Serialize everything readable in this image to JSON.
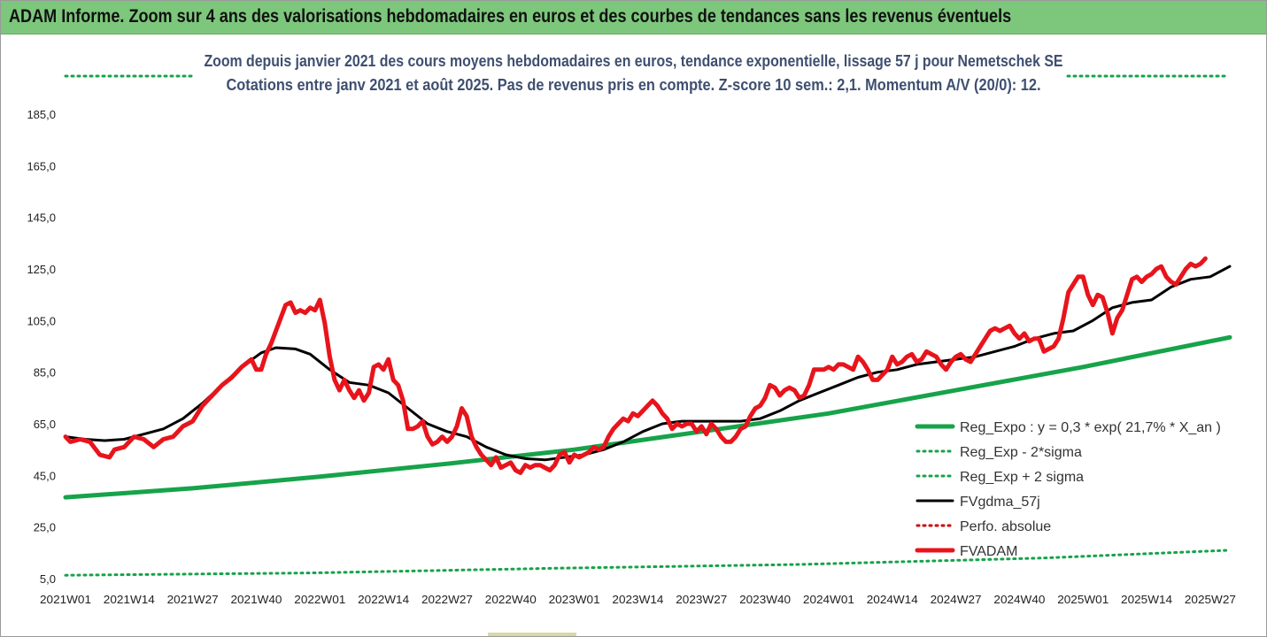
{
  "header": {
    "title": "ADAM Informe. Zoom sur 4 ans des valorisations hebdomadaires en euros et des courbes de tendances sans les revenus éventuels"
  },
  "chart_data": {
    "type": "line",
    "title": "Zoom depuis janvier 2021 des cours moyens hebdomadaires en euros, tendance exponentielle, lissage 57 j pour Nemetschek SE",
    "subtitle": "Cotations entre janv 2021 et août 2025.  Pas de revenus pris en compte. Z-score 10 sem.: 2,1. Momentum A/V (20/0): 12.",
    "ylim": [
      5,
      185
    ],
    "yticks": [
      "185,0",
      "165,0",
      "145,0",
      "125,0",
      "105,0",
      "85,0",
      "65,0",
      "45,0",
      "25,0",
      "5,0"
    ],
    "xlim": [
      0,
      238
    ],
    "xticks": [
      {
        "label": "2021W01",
        "x": 0
      },
      {
        "label": "2021W14",
        "x": 13
      },
      {
        "label": "2021W27",
        "x": 26
      },
      {
        "label": "2021W40",
        "x": 39
      },
      {
        "label": "2022W01",
        "x": 52
      },
      {
        "label": "2022W14",
        "x": 65
      },
      {
        "label": "2022W27",
        "x": 78
      },
      {
        "label": "2022W40",
        "x": 91
      },
      {
        "label": "2023W01",
        "x": 104
      },
      {
        "label": "2023W14",
        "x": 117
      },
      {
        "label": "2023W27",
        "x": 130
      },
      {
        "label": "2023W40",
        "x": 143
      },
      {
        "label": "2024W01",
        "x": 156
      },
      {
        "label": "2024W14",
        "x": 169
      },
      {
        "label": "2024W27",
        "x": 182
      },
      {
        "label": "2024W40",
        "x": 195
      },
      {
        "label": "2025W01",
        "x": 208
      },
      {
        "label": "2025W14",
        "x": 221
      },
      {
        "label": "2025W27",
        "x": 234
      }
    ],
    "legend_position": "bottom-right",
    "series": [
      {
        "name": "Reg_Expo : y = 0,3 * exp( 21,7% *  X_an )",
        "style": "solid",
        "color": "#16a34a",
        "width": 5,
        "points": [
          [
            0,
            36.5
          ],
          [
            26,
            40
          ],
          [
            52,
            44.5
          ],
          [
            78,
            49.5
          ],
          [
            104,
            55
          ],
          [
            130,
            62
          ],
          [
            156,
            69
          ],
          [
            182,
            78
          ],
          [
            208,
            87
          ],
          [
            238,
            98.5
          ]
        ]
      },
      {
        "name": "Reg_Exp - 2*sigma",
        "style": "dotted",
        "color": "#16a34a",
        "width": 3,
        "points": [
          [
            0,
            6.3
          ],
          [
            50,
            7.2
          ],
          [
            100,
            9
          ],
          [
            150,
            10.5
          ],
          [
            200,
            13
          ],
          [
            238,
            16
          ]
        ]
      },
      {
        "name": "Reg_Exp + 2 sigma",
        "style": "dotted",
        "color": "#16a34a",
        "width": 3,
        "points": [
          [
            0,
            189
          ],
          [
            238,
            189
          ]
        ]
      },
      {
        "name": "FVgdma_57j",
        "style": "solid",
        "color": "#000000",
        "width": 3,
        "points": [
          [
            0,
            60
          ],
          [
            4,
            59
          ],
          [
            8,
            58.5
          ],
          [
            12,
            59
          ],
          [
            16,
            61
          ],
          [
            20,
            63
          ],
          [
            24,
            67
          ],
          [
            28,
            73
          ],
          [
            32,
            80
          ],
          [
            36,
            87
          ],
          [
            40,
            92.5
          ],
          [
            43,
            94.5
          ],
          [
            47,
            94
          ],
          [
            50,
            92
          ],
          [
            54,
            86
          ],
          [
            58,
            81
          ],
          [
            62,
            80
          ],
          [
            66,
            77
          ],
          [
            70,
            71
          ],
          [
            74,
            65
          ],
          [
            78,
            62
          ],
          [
            82,
            60
          ],
          [
            86,
            56
          ],
          [
            90,
            53
          ],
          [
            94,
            51.5
          ],
          [
            98,
            51
          ],
          [
            102,
            52
          ],
          [
            106,
            53
          ],
          [
            110,
            55
          ],
          [
            114,
            58
          ],
          [
            118,
            62
          ],
          [
            122,
            65
          ],
          [
            126,
            66
          ],
          [
            130,
            66
          ],
          [
            134,
            66
          ],
          [
            138,
            66
          ],
          [
            142,
            67
          ],
          [
            146,
            70
          ],
          [
            150,
            74
          ],
          [
            154,
            77
          ],
          [
            158,
            80
          ],
          [
            162,
            83
          ],
          [
            166,
            85
          ],
          [
            170,
            86
          ],
          [
            174,
            88
          ],
          [
            178,
            89
          ],
          [
            182,
            90
          ],
          [
            186,
            91
          ],
          [
            190,
            93
          ],
          [
            194,
            95
          ],
          [
            198,
            98
          ],
          [
            202,
            100
          ],
          [
            206,
            101
          ],
          [
            210,
            105
          ],
          [
            214,
            110
          ],
          [
            218,
            112
          ],
          [
            222,
            113
          ],
          [
            226,
            118
          ],
          [
            230,
            121
          ],
          [
            234,
            122
          ],
          [
            238,
            126
          ]
        ]
      },
      {
        "name": "Perfo. absolue",
        "style": "dotted",
        "color": "#cc0000",
        "width": 3,
        "points": []
      },
      {
        "name": "FVADAM",
        "style": "solid",
        "color": "#e8141c",
        "width": 5,
        "points": [
          [
            0,
            60
          ],
          [
            1,
            58
          ],
          [
            3,
            59
          ],
          [
            5,
            58
          ],
          [
            7,
            53
          ],
          [
            9,
            52
          ],
          [
            10,
            55
          ],
          [
            12,
            56
          ],
          [
            14,
            60
          ],
          [
            16,
            59
          ],
          [
            18,
            56
          ],
          [
            20,
            59
          ],
          [
            22,
            60
          ],
          [
            24,
            64
          ],
          [
            26,
            66
          ],
          [
            28,
            72
          ],
          [
            30,
            76
          ],
          [
            32,
            80
          ],
          [
            34,
            83
          ],
          [
            36,
            87
          ],
          [
            38,
            90
          ],
          [
            39,
            86
          ],
          [
            40,
            86
          ],
          [
            41,
            92
          ],
          [
            42,
            96
          ],
          [
            43,
            101
          ],
          [
            44,
            106
          ],
          [
            45,
            111
          ],
          [
            46,
            112
          ],
          [
            47,
            108
          ],
          [
            48,
            109
          ],
          [
            49,
            108
          ],
          [
            50,
            110
          ],
          [
            51,
            109
          ],
          [
            52,
            113
          ],
          [
            53,
            104
          ],
          [
            54,
            91
          ],
          [
            55,
            82
          ],
          [
            56,
            78
          ],
          [
            57,
            82
          ],
          [
            58,
            78
          ],
          [
            59,
            75
          ],
          [
            60,
            78
          ],
          [
            61,
            74
          ],
          [
            62,
            77
          ],
          [
            63,
            87
          ],
          [
            64,
            88
          ],
          [
            65,
            86
          ],
          [
            66,
            90
          ],
          [
            67,
            82
          ],
          [
            68,
            80
          ],
          [
            69,
            74
          ],
          [
            70,
            63
          ],
          [
            71,
            63
          ],
          [
            72,
            64
          ],
          [
            73,
            66
          ],
          [
            74,
            60
          ],
          [
            75,
            57
          ],
          [
            76,
            58
          ],
          [
            77,
            60
          ],
          [
            78,
            58
          ],
          [
            79,
            60
          ],
          [
            80,
            64
          ],
          [
            81,
            71
          ],
          [
            82,
            68
          ],
          [
            83,
            60
          ],
          [
            84,
            56
          ],
          [
            85,
            53
          ],
          [
            86,
            51
          ],
          [
            87,
            49
          ],
          [
            88,
            52
          ],
          [
            89,
            48
          ],
          [
            90,
            49
          ],
          [
            91,
            50
          ],
          [
            92,
            47
          ],
          [
            93,
            46
          ],
          [
            94,
            49
          ],
          [
            95,
            48
          ],
          [
            96,
            49
          ],
          [
            97,
            49
          ],
          [
            98,
            48
          ],
          [
            99,
            47
          ],
          [
            100,
            49
          ],
          [
            101,
            53
          ],
          [
            102,
            54
          ],
          [
            103,
            50
          ],
          [
            104,
            53
          ],
          [
            105,
            52
          ],
          [
            106,
            53
          ],
          [
            107,
            54
          ],
          [
            108,
            56
          ],
          [
            109,
            55
          ],
          [
            110,
            56
          ],
          [
            111,
            60
          ],
          [
            112,
            63
          ],
          [
            113,
            65
          ],
          [
            114,
            67
          ],
          [
            115,
            66
          ],
          [
            116,
            69
          ],
          [
            117,
            68
          ],
          [
            118,
            70
          ],
          [
            119,
            72
          ],
          [
            120,
            74
          ],
          [
            121,
            72
          ],
          [
            122,
            69
          ],
          [
            123,
            67
          ],
          [
            124,
            63
          ],
          [
            125,
            65
          ],
          [
            126,
            64
          ],
          [
            127,
            65
          ],
          [
            128,
            65
          ],
          [
            129,
            62
          ],
          [
            130,
            64
          ],
          [
            131,
            61
          ],
          [
            132,
            65
          ],
          [
            133,
            63
          ],
          [
            134,
            60
          ],
          [
            135,
            58
          ],
          [
            136,
            58
          ],
          [
            137,
            60
          ],
          [
            138,
            63
          ],
          [
            139,
            64
          ],
          [
            140,
            68
          ],
          [
            141,
            71
          ],
          [
            142,
            72
          ],
          [
            143,
            75
          ],
          [
            144,
            80
          ],
          [
            145,
            79
          ],
          [
            146,
            76
          ],
          [
            147,
            78
          ],
          [
            148,
            79
          ],
          [
            149,
            78
          ],
          [
            150,
            75
          ],
          [
            151,
            76
          ],
          [
            152,
            80
          ],
          [
            153,
            86
          ],
          [
            154,
            86
          ],
          [
            155,
            86
          ],
          [
            156,
            87
          ],
          [
            157,
            86
          ],
          [
            158,
            88
          ],
          [
            159,
            88
          ],
          [
            160,
            87
          ],
          [
            161,
            86
          ],
          [
            162,
            91
          ],
          [
            163,
            89
          ],
          [
            164,
            86
          ],
          [
            165,
            82
          ],
          [
            166,
            82
          ],
          [
            167,
            84
          ],
          [
            168,
            86
          ],
          [
            169,
            91
          ],
          [
            170,
            88
          ],
          [
            171,
            89
          ],
          [
            172,
            91
          ],
          [
            173,
            92
          ],
          [
            174,
            89
          ],
          [
            175,
            90
          ],
          [
            176,
            93
          ],
          [
            177,
            92
          ],
          [
            178,
            91
          ],
          [
            179,
            88
          ],
          [
            180,
            86
          ],
          [
            181,
            89
          ],
          [
            182,
            91
          ],
          [
            183,
            92
          ],
          [
            184,
            90
          ],
          [
            185,
            89
          ],
          [
            186,
            92
          ],
          [
            187,
            95
          ],
          [
            188,
            98
          ],
          [
            189,
            101
          ],
          [
            190,
            102
          ],
          [
            191,
            101
          ],
          [
            192,
            102
          ],
          [
            193,
            103
          ],
          [
            194,
            100
          ],
          [
            195,
            98
          ],
          [
            196,
            100
          ],
          [
            197,
            97
          ],
          [
            198,
            98
          ],
          [
            199,
            98
          ],
          [
            200,
            93
          ],
          [
            201,
            94
          ],
          [
            202,
            95
          ],
          [
            203,
            98
          ],
          [
            204,
            106
          ],
          [
            205,
            116
          ],
          [
            206,
            119
          ],
          [
            207,
            122
          ],
          [
            208,
            122
          ],
          [
            209,
            115
          ],
          [
            210,
            111
          ],
          [
            211,
            115
          ],
          [
            212,
            114
          ],
          [
            213,
            108
          ],
          [
            214,
            100
          ],
          [
            215,
            106
          ],
          [
            216,
            109
          ],
          [
            217,
            115
          ],
          [
            218,
            121
          ],
          [
            219,
            122
          ],
          [
            220,
            120
          ],
          [
            221,
            122
          ],
          [
            222,
            123
          ],
          [
            223,
            125
          ],
          [
            224,
            126
          ],
          [
            225,
            122
          ],
          [
            226,
            120
          ],
          [
            227,
            119
          ],
          [
            228,
            122
          ],
          [
            229,
            125
          ],
          [
            230,
            127
          ],
          [
            231,
            126
          ],
          [
            232,
            127
          ],
          [
            233,
            129
          ]
        ]
      }
    ]
  }
}
